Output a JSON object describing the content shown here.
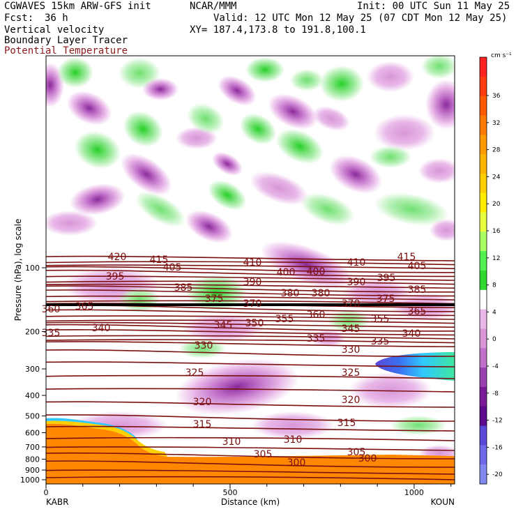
{
  "header": {
    "model": "CGWAVES 15km ARW-GFS init",
    "org": "NCAR/MMM",
    "init": "Init: 00 UTC Sun 11 May 25",
    "fcst_label": "Fcst:",
    "fcst_value": "36 h",
    "valid": "Valid: 12 UTC Mon 12 May 25 (07 CDT Mon 12 May 25)",
    "field1": "Vertical velocity",
    "xy": "XY= 187.4,173.8 to 191.8,100.1",
    "field2": "Boundary Layer Tracer",
    "field3": "Potential Temperature"
  },
  "colors": {
    "theta": "#7a1010",
    "field3_text": "#8b1a1a",
    "downward_light": "#e8b8e8",
    "downward_mid": "#c070c8",
    "downward_dark": "#8a2a9a",
    "upward_light": "#b8f0b8",
    "upward_mid": "#70e070",
    "upward_dark": "#28d028",
    "tracer": "#ff8800"
  },
  "chart_data": {
    "type": "heatmap",
    "xlabel": "Distance (km)",
    "ylabel": "Pressure (hPa), log scale",
    "x_ticks": [
      0,
      500,
      1000
    ],
    "x_range": [
      0,
      1110
    ],
    "y_ticks": [
      100,
      200,
      300,
      400,
      500,
      600,
      700,
      800,
      900,
      1000
    ],
    "y_scale": "log",
    "left_endpoint": "KABR",
    "right_endpoint": "KOUN",
    "colorbar": {
      "units": "cm s⁻¹",
      "labels": [
        "36",
        "32",
        "28",
        "24",
        "20",
        "16",
        "12",
        "8",
        "4",
        "0",
        "-4",
        "-8",
        "-12",
        "-16",
        "-20"
      ],
      "colors": [
        "#ff2020",
        "#ff3a10",
        "#ff5a00",
        "#ff7a00",
        "#ff9a00",
        "#ffb400",
        "#ffd000",
        "#ffee00",
        "#e8ff40",
        "#a8ff60",
        "#50f050",
        "#30d830",
        "#ffffff",
        "#e8b8e8",
        "#d896d8",
        "#c070c8",
        "#9a40b0",
        "#7a1a9a",
        "#5a0a8a",
        "#5a48d8",
        "#7068e8",
        "#8088f0"
      ]
    },
    "theta_labels": [
      {
        "text": "420",
        "x": 168,
        "y": 373
      },
      {
        "text": "415",
        "x": 228,
        "y": 377
      },
      {
        "text": "405",
        "x": 247,
        "y": 388
      },
      {
        "text": "410",
        "x": 362,
        "y": 381
      },
      {
        "text": "400",
        "x": 410,
        "y": 395
      },
      {
        "text": "400",
        "x": 453,
        "y": 394
      },
      {
        "text": "410",
        "x": 511,
        "y": 381
      },
      {
        "text": "415",
        "x": 583,
        "y": 373
      },
      {
        "text": "405",
        "x": 598,
        "y": 386
      },
      {
        "text": "395",
        "x": 165,
        "y": 401
      },
      {
        "text": "385",
        "x": 263,
        "y": 417
      },
      {
        "text": "390",
        "x": 362,
        "y": 409
      },
      {
        "text": "390",
        "x": 511,
        "y": 409
      },
      {
        "text": "395",
        "x": 554,
        "y": 403
      },
      {
        "text": "385",
        "x": 598,
        "y": 420
      },
      {
        "text": "380",
        "x": 416,
        "y": 425
      },
      {
        "text": "380",
        "x": 460,
        "y": 425
      },
      {
        "text": "375",
        "x": 307,
        "y": 433
      },
      {
        "text": "375",
        "x": 553,
        "y": 433
      },
      {
        "text": "370",
        "x": 362,
        "y": 440
      },
      {
        "text": "370",
        "x": 503,
        "y": 440
      },
      {
        "text": "365",
        "x": 121,
        "y": 444
      },
      {
        "text": "365",
        "x": 598,
        "y": 451
      },
      {
        "text": "360",
        "x": 73,
        "y": 448
      },
      {
        "text": "360",
        "x": 453,
        "y": 456
      },
      {
        "text": "355",
        "x": 408,
        "y": 462
      },
      {
        "text": "355",
        "x": 545,
        "y": 462
      },
      {
        "text": "350",
        "x": 365,
        "y": 468
      },
      {
        "text": "345",
        "x": 320,
        "y": 471
      },
      {
        "text": "345",
        "x": 503,
        "y": 476
      },
      {
        "text": "340",
        "x": 145,
        "y": 475
      },
      {
        "text": "340",
        "x": 590,
        "y": 483
      },
      {
        "text": "335",
        "x": 73,
        "y": 482
      },
      {
        "text": "335",
        "x": 453,
        "y": 490
      },
      {
        "text": "335",
        "x": 545,
        "y": 494
      },
      {
        "text": "330",
        "x": 292,
        "y": 500
      },
      {
        "text": "330",
        "x": 503,
        "y": 506
      },
      {
        "text": "325",
        "x": 279,
        "y": 539
      },
      {
        "text": "325",
        "x": 503,
        "y": 539
      },
      {
        "text": "320",
        "x": 290,
        "y": 581
      },
      {
        "text": "320",
        "x": 503,
        "y": 578
      },
      {
        "text": "315",
        "x": 290,
        "y": 613
      },
      {
        "text": "315",
        "x": 497,
        "y": 611
      },
      {
        "text": "310",
        "x": 332,
        "y": 638
      },
      {
        "text": "310",
        "x": 420,
        "y": 635
      },
      {
        "text": "305",
        "x": 377,
        "y": 656
      },
      {
        "text": "305",
        "x": 511,
        "y": 653
      },
      {
        "text": "300",
        "x": 425,
        "y": 668
      },
      {
        "text": "300",
        "x": 527,
        "y": 662
      }
    ]
  }
}
